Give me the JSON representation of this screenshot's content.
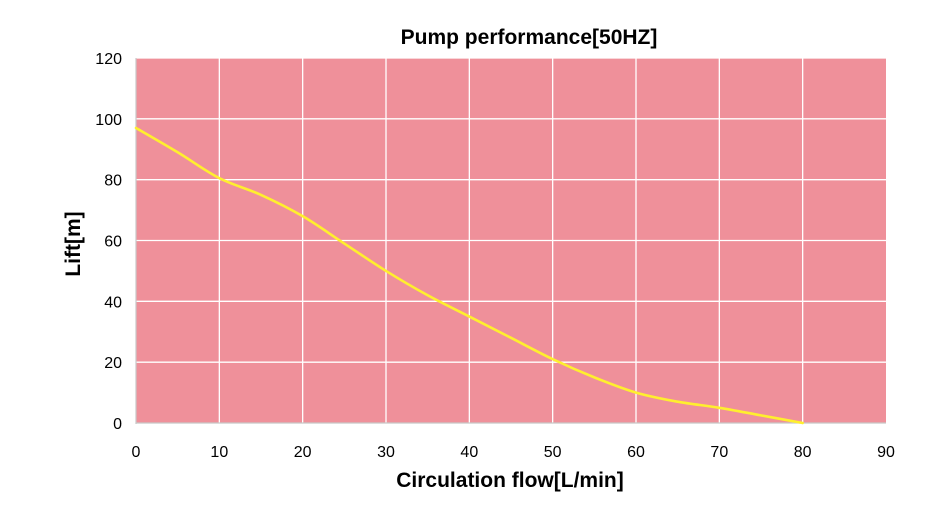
{
  "chart_data": {
    "type": "line",
    "title": "Pump performance[50HZ]",
    "xlabel": "Circulation flow[L/min]",
    "ylabel": "Lift[m]",
    "xlim": [
      0,
      90
    ],
    "ylim": [
      0,
      120
    ],
    "x_ticks": [
      "0",
      "10",
      "20",
      "30",
      "40",
      "50",
      "60",
      "70",
      "80",
      "90"
    ],
    "y_ticks": [
      "0",
      "20",
      "40",
      "60",
      "80",
      "100",
      "120"
    ],
    "grid": true,
    "legend": "none",
    "series": [
      {
        "x": [
          0,
          5,
          10,
          15,
          20,
          25,
          30,
          35,
          40,
          45,
          50,
          55,
          60,
          65,
          70,
          75,
          80
        ],
        "y": [
          97,
          89,
          80.5,
          75,
          68,
          59,
          50,
          42,
          35,
          28,
          21,
          15,
          10,
          7,
          5,
          2.5,
          0
        ]
      }
    ],
    "colors": {
      "plot_background": "#ef909a",
      "grid": "#ffffff",
      "line": "#ffef2e",
      "text": "#000000"
    }
  }
}
